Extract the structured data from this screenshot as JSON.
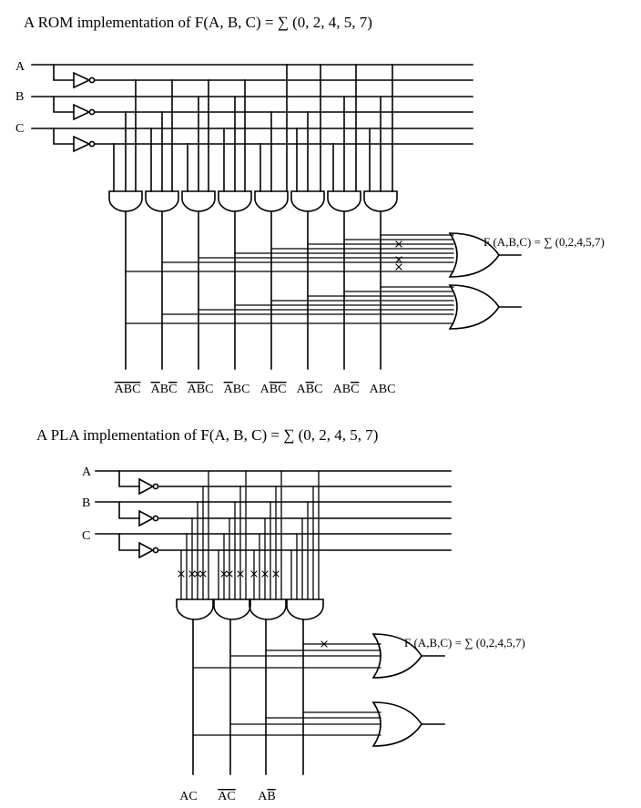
{
  "rom": {
    "title": "A ROM implementation of F(A, B, C) = ∑ (0, 2, 4, 5, 7)",
    "inputs": [
      "A",
      "B",
      "C"
    ],
    "output_label": "F (A,B,C) = ∑ (0,2,4,5,7)",
    "minterms": [
      {
        "label": "ABC",
        "bars": [
          true,
          true,
          true
        ]
      },
      {
        "label": "ABC",
        "bars": [
          true,
          false,
          true
        ]
      },
      {
        "label": "ABC",
        "bars": [
          true,
          true,
          false
        ]
      },
      {
        "label": "ABC",
        "bars": [
          true,
          false,
          false
        ]
      },
      {
        "label": "ABC",
        "bars": [
          false,
          true,
          true
        ]
      },
      {
        "label": "ABC",
        "bars": [
          false,
          true,
          false
        ]
      },
      {
        "label": "ABC",
        "bars": [
          false,
          false,
          true
        ]
      },
      {
        "label": "ABC",
        "bars": [
          false,
          false,
          false
        ]
      }
    ],
    "connected_minterms": [
      0,
      2,
      4,
      5,
      7
    ]
  },
  "pla": {
    "title": "A PLA implementation of F(A, B, C) = ∑ (0, 2, 4, 5, 7)",
    "inputs": [
      "A",
      "B",
      "C"
    ],
    "output_label": "F (A,B,C) = ∑ (0,2,4,5,7)",
    "products": [
      {
        "letters": [
          "A",
          "C"
        ],
        "bars": [
          false,
          false
        ]
      },
      {
        "letters": [
          "A",
          "C"
        ],
        "bars": [
          true,
          true
        ]
      },
      {
        "letters": [
          "A",
          "B"
        ],
        "bars": [
          false,
          true
        ]
      }
    ]
  },
  "colors": {
    "line": "#000000",
    "background": "#ffffff"
  }
}
